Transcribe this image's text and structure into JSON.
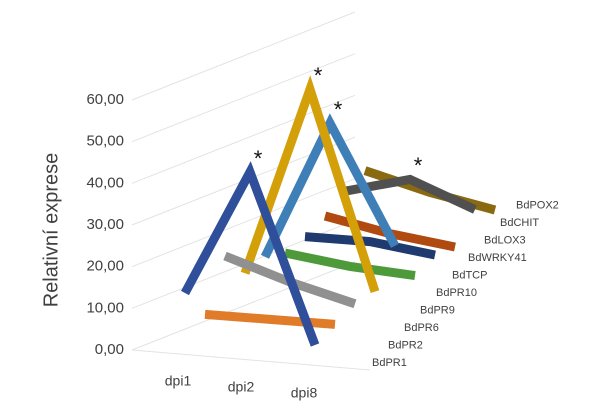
{
  "chart_data": {
    "type": "line3d",
    "y_label": "Relativní exprese",
    "categories": [
      "dpi1",
      "dpi2",
      "dpi8"
    ],
    "ylim": [
      0,
      60
    ],
    "yticks": [
      {
        "value": 0,
        "label": "0,00"
      },
      {
        "value": 10,
        "label": "10,00"
      },
      {
        "value": 20,
        "label": "20,00"
      },
      {
        "value": 30,
        "label": "30,00"
      },
      {
        "value": 40,
        "label": "40,00"
      },
      {
        "value": 50,
        "label": "50,00"
      },
      {
        "value": 60,
        "label": "60,00"
      }
    ],
    "grid": true,
    "series": [
      {
        "name": "BdPR1",
        "color": "#2f4f9a",
        "values": [
          10,
          40,
          0
        ],
        "annotation": "*"
      },
      {
        "name": "BdPR2",
        "color": "#e07b2a",
        "values": [
          3,
          3,
          3
        ]
      },
      {
        "name": "BdPR6",
        "color": "#909090",
        "values": [
          15,
          10,
          6
        ]
      },
      {
        "name": "BdPR9",
        "color": "#d4a00a",
        "values": [
          9,
          54,
          7
        ],
        "annotation": "*"
      },
      {
        "name": "BdPR10",
        "color": "#3f7fb8",
        "values": [
          11,
          44,
          16
        ],
        "annotation": "*"
      },
      {
        "name": "BdTCP",
        "color": "#4e9a3a",
        "values": [
          10,
          8,
          7
        ]
      },
      {
        "name": "BdWRKY41",
        "color": "#1f3a6e",
        "values": [
          12,
          12,
          10
        ]
      },
      {
        "name": "BdLOX3",
        "color": "#b04a10",
        "values": [
          15,
          12,
          10
        ]
      },
      {
        "name": "BdCHIT",
        "color": "#505050",
        "values": [
          19,
          23,
          17
        ],
        "annotation": "*"
      },
      {
        "name": "BdPOX2",
        "color": "#8a6a10",
        "values": [
          22,
          18,
          15
        ]
      }
    ]
  }
}
